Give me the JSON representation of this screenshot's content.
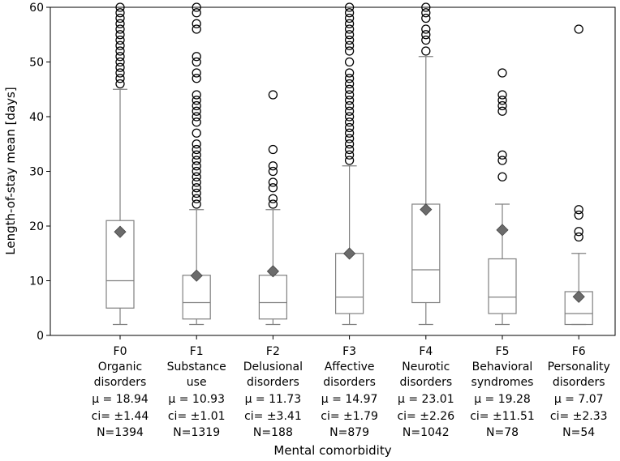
{
  "chart_data": {
    "type": "box",
    "xlabel": "Mental comorbidity",
    "ylabel": "Length-of-stay mean [days]",
    "ylim": [
      0,
      60
    ],
    "yticks": [
      0,
      10,
      20,
      30,
      40,
      50,
      60
    ],
    "grid": false,
    "colors": {
      "box": "#808080",
      "mean_marker": "#6b6b6b",
      "outlier": "#000000"
    },
    "categories": [
      {
        "labels": [
          "F0",
          "Organic",
          "disorders",
          "μ = 18.94",
          "ci= ±1.44",
          "N=1394"
        ],
        "whisker_low": 2,
        "q1": 5,
        "median": 10,
        "q3": 21,
        "whisker_high": 45,
        "mean": 18.94,
        "outliers": [
          46,
          47,
          48,
          49,
          50,
          51,
          52,
          53,
          54,
          55,
          56,
          57,
          58,
          59,
          60
        ]
      },
      {
        "labels": [
          "F1",
          "Substance",
          "use",
          "μ = 10.93",
          "ci= ±1.01",
          "N=1319"
        ],
        "whisker_low": 2,
        "q1": 3,
        "median": 6,
        "q3": 11,
        "whisker_high": 23,
        "mean": 10.93,
        "outliers": [
          24,
          25,
          26,
          27,
          28,
          29,
          30,
          31,
          32,
          33,
          34,
          35,
          37,
          39,
          40,
          41,
          42,
          43,
          44,
          47,
          48,
          50,
          51,
          56,
          57,
          59,
          60
        ]
      },
      {
        "labels": [
          "F2",
          "Delusional",
          "disorders",
          "μ = 11.73",
          "ci= ±3.41",
          "N=188"
        ],
        "whisker_low": 2,
        "q1": 3,
        "median": 6,
        "q3": 11,
        "whisker_high": 23,
        "mean": 11.73,
        "outliers": [
          24,
          25,
          27,
          28,
          30,
          31,
          34,
          44
        ]
      },
      {
        "labels": [
          "F3",
          "Affective",
          "disorders",
          "μ = 14.97",
          "ci= ±1.79",
          "N=879"
        ],
        "whisker_low": 2,
        "q1": 4,
        "median": 7,
        "q3": 15,
        "whisker_high": 31,
        "mean": 14.97,
        "outliers": [
          32,
          33,
          34,
          35,
          36,
          37,
          38,
          39,
          40,
          41,
          42,
          43,
          44,
          45,
          46,
          47,
          48,
          50,
          52,
          53,
          54,
          55,
          56,
          57,
          58,
          59,
          60
        ]
      },
      {
        "labels": [
          "F4",
          "Neurotic",
          "disorders",
          "μ = 23.01",
          "ci= ±2.26",
          "N=1042"
        ],
        "whisker_low": 2,
        "q1": 6,
        "median": 12,
        "q3": 24,
        "whisker_high": 51,
        "mean": 23.01,
        "outliers": [
          52,
          54,
          55,
          56,
          58,
          59,
          60
        ]
      },
      {
        "labels": [
          "F5",
          "Behavioral",
          "syndromes",
          "μ = 19.28",
          "ci= ±11.51",
          "N=78"
        ],
        "whisker_low": 2,
        "q1": 4,
        "median": 7,
        "q3": 14,
        "whisker_high": 24,
        "mean": 19.28,
        "outliers": [
          29,
          32,
          33,
          41,
          42,
          43,
          44,
          48
        ]
      },
      {
        "labels": [
          "F6",
          "Personality",
          "disorders",
          "μ = 7.07",
          "ci= ±2.33",
          "N=54"
        ],
        "whisker_low": 2,
        "q1": 2,
        "median": 4,
        "q3": 8,
        "whisker_high": 15,
        "mean": 7.07,
        "outliers": [
          18,
          19,
          22,
          23,
          56
        ]
      }
    ]
  }
}
